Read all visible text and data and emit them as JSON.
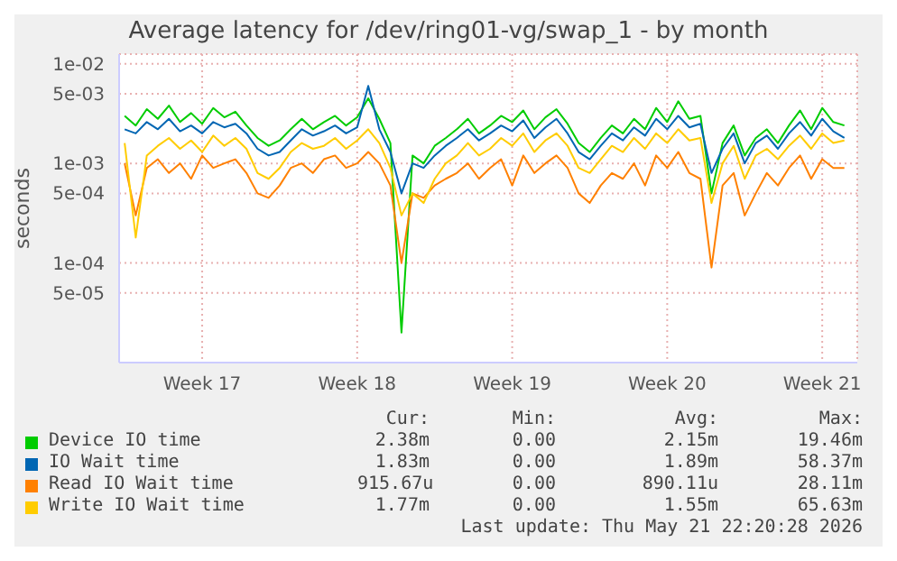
{
  "chart_data": {
    "type": "line",
    "title": "Average latency for /dev/ring01-vg/swap_1 - by month",
    "ylabel": "seconds",
    "log": true,
    "grid": true,
    "legend": "bottom",
    "xlim": [
      "2026-04-18T18:00",
      "2026-05-22T02:00"
    ],
    "xticks": [
      {
        "value": "2026-04-22T12:00",
        "label": "Week 17"
      },
      {
        "value": "2026-04-29T12:00",
        "label": "Week 18"
      },
      {
        "value": "2026-05-06T12:00",
        "label": "Week 19"
      },
      {
        "value": "2026-05-13T12:00",
        "label": "Week 20"
      },
      {
        "value": "2026-05-20T12:00",
        "label": "Week 21"
      }
    ],
    "ylim": [
      1e-05,
      0.0125
    ],
    "yticks": [
      {
        "value": 5e-05,
        "label": "5e-05"
      },
      {
        "value": 0.0001,
        "label": "1e-04"
      },
      {
        "value": 0.0005,
        "label": "5e-04"
      },
      {
        "value": 0.001,
        "label": "1e-03"
      },
      {
        "value": 0.005,
        "label": "5e-03"
      },
      {
        "value": 0.01,
        "label": "1e-02"
      }
    ],
    "x": [
      "2026-04-19T00:00",
      "2026-04-19T12:00",
      "2026-04-20T00:00",
      "2026-04-20T12:00",
      "2026-04-21T00:00",
      "2026-04-21T12:00",
      "2026-04-22T00:00",
      "2026-04-22T12:00",
      "2026-04-23T00:00",
      "2026-04-23T12:00",
      "2026-04-24T00:00",
      "2026-04-24T12:00",
      "2026-04-25T00:00",
      "2026-04-25T12:00",
      "2026-04-26T00:00",
      "2026-04-26T12:00",
      "2026-04-27T00:00",
      "2026-04-27T12:00",
      "2026-04-28T00:00",
      "2026-04-28T12:00",
      "2026-04-29T00:00",
      "2026-04-29T12:00",
      "2026-04-30T00:00",
      "2026-04-30T12:00",
      "2026-05-01T00:00",
      "2026-05-01T12:00",
      "2026-05-02T00:00",
      "2026-05-02T12:00",
      "2026-05-03T00:00",
      "2026-05-03T12:00",
      "2026-05-04T00:00",
      "2026-05-04T12:00",
      "2026-05-05T00:00",
      "2026-05-05T12:00",
      "2026-05-06T00:00",
      "2026-05-06T12:00",
      "2026-05-07T00:00",
      "2026-05-07T12:00",
      "2026-05-08T00:00",
      "2026-05-08T12:00",
      "2026-05-09T00:00",
      "2026-05-09T12:00",
      "2026-05-10T00:00",
      "2026-05-10T12:00",
      "2026-05-11T00:00",
      "2026-05-11T12:00",
      "2026-05-12T00:00",
      "2026-05-12T12:00",
      "2026-05-13T00:00",
      "2026-05-13T12:00",
      "2026-05-14T00:00",
      "2026-05-14T12:00",
      "2026-05-15T00:00",
      "2026-05-15T12:00",
      "2026-05-16T00:00",
      "2026-05-16T12:00",
      "2026-05-17T00:00",
      "2026-05-17T12:00",
      "2026-05-18T00:00",
      "2026-05-18T12:00",
      "2026-05-19T00:00",
      "2026-05-19T12:00",
      "2026-05-20T00:00",
      "2026-05-20T12:00",
      "2026-05-21T00:00",
      "2026-05-21T12:00"
    ],
    "series": [
      {
        "name": "Device IO time",
        "color": "#00cc00",
        "values": [
          0.003,
          0.0024,
          0.0035,
          0.0028,
          0.0038,
          0.0026,
          0.0032,
          0.0025,
          0.0036,
          0.0029,
          0.0033,
          0.0024,
          0.0018,
          0.0015,
          0.0017,
          0.0022,
          0.0028,
          0.0022,
          0.0026,
          0.003,
          0.0024,
          0.0029,
          0.0045,
          0.0028,
          0.0016,
          2e-05,
          0.0012,
          0.001,
          0.0015,
          0.0018,
          0.0022,
          0.0028,
          0.002,
          0.0024,
          0.003,
          0.0026,
          0.0034,
          0.0022,
          0.0029,
          0.0035,
          0.0025,
          0.0016,
          0.0013,
          0.0018,
          0.0024,
          0.002,
          0.0028,
          0.0022,
          0.0036,
          0.0026,
          0.0042,
          0.0028,
          0.003,
          0.0005,
          0.0016,
          0.0024,
          0.0012,
          0.0018,
          0.0022,
          0.0016,
          0.0024,
          0.0034,
          0.0022,
          0.0036,
          0.0026,
          0.0024
        ]
      },
      {
        "name": "IO Wait time",
        "color": "#0066b3",
        "values": [
          0.0022,
          0.002,
          0.0026,
          0.0022,
          0.0028,
          0.0021,
          0.0024,
          0.002,
          0.0026,
          0.0023,
          0.0025,
          0.002,
          0.0014,
          0.0012,
          0.0013,
          0.0017,
          0.0022,
          0.0019,
          0.0021,
          0.0024,
          0.002,
          0.0023,
          0.006,
          0.0022,
          0.0013,
          0.0005,
          0.001,
          0.0009,
          0.0012,
          0.0015,
          0.0018,
          0.0022,
          0.0017,
          0.002,
          0.0024,
          0.0021,
          0.0027,
          0.0018,
          0.0023,
          0.0028,
          0.002,
          0.0013,
          0.0011,
          0.0015,
          0.002,
          0.0017,
          0.0023,
          0.0019,
          0.0028,
          0.0022,
          0.003,
          0.0023,
          0.0025,
          0.0008,
          0.0014,
          0.002,
          0.001,
          0.0016,
          0.0019,
          0.0014,
          0.002,
          0.0026,
          0.0019,
          0.0028,
          0.0021,
          0.0018
        ]
      },
      {
        "name": "Read IO Wait time",
        "color": "#ff8000",
        "values": [
          0.001,
          0.0003,
          0.0009,
          0.0011,
          0.0008,
          0.001,
          0.0007,
          0.0012,
          0.0009,
          0.001,
          0.0011,
          0.0008,
          0.0005,
          0.00045,
          0.0006,
          0.0009,
          0.001,
          0.0008,
          0.0011,
          0.0012,
          0.0009,
          0.001,
          0.0013,
          0.001,
          0.0006,
          0.0001,
          0.0005,
          0.00045,
          0.0006,
          0.0007,
          0.0008,
          0.001,
          0.0007,
          0.0009,
          0.0011,
          0.0006,
          0.0012,
          0.0008,
          0.001,
          0.0012,
          0.0009,
          0.0005,
          0.0004,
          0.0006,
          0.0008,
          0.0007,
          0.001,
          0.0006,
          0.0012,
          0.0009,
          0.0013,
          0.0008,
          0.0007,
          9e-05,
          0.0006,
          0.0008,
          0.0003,
          0.0005,
          0.0008,
          0.0006,
          0.0009,
          0.0012,
          0.0007,
          0.0011,
          0.0009,
          0.0009
        ]
      },
      {
        "name": "Write IO Wait time",
        "color": "#ffcc00",
        "values": [
          0.0016,
          0.00018,
          0.0012,
          0.0015,
          0.0018,
          0.0014,
          0.0017,
          0.0013,
          0.0019,
          0.0015,
          0.0018,
          0.0014,
          0.0008,
          0.0007,
          0.0009,
          0.0013,
          0.0016,
          0.0014,
          0.0015,
          0.0018,
          0.0014,
          0.0017,
          0.0022,
          0.0016,
          0.0009,
          0.0003,
          0.0005,
          0.0004,
          0.0007,
          0.001,
          0.0012,
          0.0016,
          0.0012,
          0.0014,
          0.0018,
          0.0015,
          0.002,
          0.0013,
          0.0017,
          0.002,
          0.0015,
          0.0009,
          0.0008,
          0.0011,
          0.0015,
          0.0013,
          0.0018,
          0.0014,
          0.002,
          0.0016,
          0.0022,
          0.0017,
          0.0018,
          0.0004,
          0.001,
          0.0015,
          0.0007,
          0.0012,
          0.0014,
          0.0011,
          0.0015,
          0.0019,
          0.0014,
          0.002,
          0.0016,
          0.0017
        ]
      }
    ],
    "annotations": [
      "Cur:",
      "Min:",
      "Avg:",
      "Max:",
      "2.38m",
      "0.00",
      "2.15m",
      "19.46m",
      "1.83m",
      "0.00",
      "1.89m",
      "58.37m",
      "915.67u",
      "0.00",
      "890.11u",
      "28.11m",
      "1.77m",
      "0.00",
      "1.55m",
      "65.63m",
      "Last update: Thu May 21 22:20:28 2026"
    ]
  }
}
